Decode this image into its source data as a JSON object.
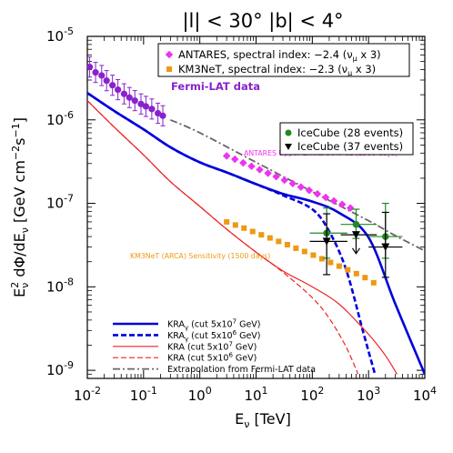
{
  "chart_data": {
    "type": "line",
    "title": "|l| < 30° |b| < 4°",
    "xlabel": "E_ν [TeV]",
    "ylabel": "E_ν² dΦ/dE_ν [GeV cm⁻² s⁻¹]",
    "xscale": "log",
    "yscale": "log",
    "xlim": [
      0.01,
      10000
    ],
    "ylim": [
      8e-10,
      1e-05
    ],
    "x_ticks": [
      {
        "value": 0.01,
        "base": "10",
        "exp": "-2"
      },
      {
        "value": 0.1,
        "base": "10",
        "exp": "-1"
      },
      {
        "value": 1,
        "base": "10",
        "exp": "0"
      },
      {
        "value": 10,
        "base": "10",
        "exp": "1"
      },
      {
        "value": 100,
        "base": "10",
        "exp": "2"
      },
      {
        "value": 1000,
        "base": "10",
        "exp": "3"
      },
      {
        "value": 10000,
        "base": "10",
        "exp": "4"
      }
    ],
    "y_ticks": [
      {
        "value": 1e-09,
        "base": "10",
        "exp": "-9"
      },
      {
        "value": 1e-08,
        "base": "10",
        "exp": "-8"
      },
      {
        "value": 1e-07,
        "base": "10",
        "exp": "-7"
      },
      {
        "value": 1e-06,
        "base": "10",
        "exp": "-6"
      },
      {
        "value": 1e-05,
        "base": "10",
        "exp": "-5"
      }
    ],
    "series": [
      {
        "name": "KRAγ (cut 5x10⁷ GeV)",
        "style": "solid",
        "color": "#0000dd",
        "width": 2.6,
        "x": [
          0.01,
          0.03,
          0.1,
          0.3,
          1,
          3,
          10,
          30,
          100,
          300,
          1000,
          3000,
          10000
        ],
        "y": [
          2.1e-06,
          1.28e-06,
          7.7e-07,
          4.7e-07,
          3.1e-07,
          2.35e-07,
          1.7e-07,
          1.3e-07,
          1.05e-07,
          7.7e-08,
          3.9e-08,
          6.2e-09,
          9e-10
        ]
      },
      {
        "name": "KRAγ (cut 5x10⁶ GeV)",
        "style": "dashed",
        "color": "#0000dd",
        "width": 2.6,
        "x": [
          0.01,
          0.03,
          0.1,
          0.3,
          1,
          3,
          10,
          30,
          100,
          200,
          400,
          800,
          1300
        ],
        "y": [
          2.1e-06,
          1.28e-06,
          7.7e-07,
          4.7e-07,
          3.1e-07,
          2.35e-07,
          1.7e-07,
          1.25e-07,
          8.5e-08,
          4.6e-08,
          1.6e-08,
          2.9e-09,
          9e-10
        ]
      },
      {
        "name": "KRA (cut 5x10⁷ GeV)",
        "style": "solid",
        "color": "#ee2222",
        "width": 1.2,
        "x": [
          0.01,
          0.03,
          0.1,
          0.3,
          1,
          3,
          10,
          30,
          100,
          300,
          1000,
          2000,
          3200
        ],
        "y": [
          1.7e-06,
          8.2e-07,
          3.8e-07,
          1.82e-07,
          9.2e-08,
          4.9e-08,
          2.6e-08,
          1.55e-08,
          1e-08,
          6.2e-09,
          2.7e-09,
          1.5e-09,
          9e-10
        ]
      },
      {
        "name": "KRA (cut 5x10⁶ GeV)",
        "style": "dashed",
        "color": "#ee2222",
        "width": 1.2,
        "x": [
          0.01,
          0.03,
          0.1,
          0.3,
          1,
          3,
          10,
          30,
          100,
          200,
          400,
          650
        ],
        "y": [
          1.7e-06,
          8.2e-07,
          3.8e-07,
          1.82e-07,
          9.2e-08,
          4.9e-08,
          2.6e-08,
          1.5e-08,
          7.4e-09,
          4.2e-09,
          1.9e-09,
          9e-10
        ]
      },
      {
        "name": "Extrapolation from Fermi-LAT data",
        "style": "dashdot",
        "color": "#666666",
        "width": 1.8,
        "x": [
          0.3,
          1,
          10,
          100,
          1000,
          3000,
          10000
        ],
        "y": [
          1e-06,
          7e-07,
          3.1e-07,
          1.38e-07,
          6.2e-08,
          4.1e-08,
          2.7e-08
        ]
      }
    ],
    "fermi_lat": {
      "label": "Fermi-LAT data",
      "color": "#8822cc",
      "x": [
        0.011,
        0.014,
        0.018,
        0.022,
        0.028,
        0.035,
        0.045,
        0.056,
        0.07,
        0.09,
        0.11,
        0.14,
        0.18,
        0.22
      ],
      "y": [
        4.3e-06,
        3.7e-06,
        3.4e-06,
        2.95e-06,
        2.6e-06,
        2.3e-06,
        2.05e-06,
        1.85e-06,
        1.7e-06,
        1.55e-06,
        1.45e-06,
        1.35e-06,
        1.2e-06,
        1.12e-06
      ],
      "yerr_factor": 1.32
    },
    "antares": {
      "legend": "ANTARES, spectral index: −2.4  (ν",
      "legend_sub": "μ",
      "legend_tail": " x 3)",
      "annotation": "ANTARES Upper Limits 90% CL (1500 days)",
      "color": "#ee33ee",
      "x": [
        3,
        4.2,
        5.9,
        8.3,
        11.6,
        16.3,
        22.8,
        32,
        44.8,
        62.8,
        88,
        123,
        173,
        242,
        340,
        476
      ],
      "y": [
        3.7e-07,
        3.38e-07,
        3.06e-07,
        2.78e-07,
        2.53e-07,
        2.3e-07,
        2.09e-07,
        1.9e-07,
        1.73e-07,
        1.57e-07,
        1.43e-07,
        1.3e-07,
        1.18e-07,
        1.07e-07,
        9.7e-08,
        8.8e-08
      ]
    },
    "km3net": {
      "legend": "KM3NeT, spectral index: −2.3  (ν",
      "legend_sub": "μ",
      "legend_tail": " x 3)",
      "annotation": "KM3NeT (ARCA) Sensitivity (1500 days)",
      "color": "#ee9911",
      "x": [
        3,
        4.3,
        6.1,
        8.7,
        12.4,
        17.7,
        25.2,
        36,
        51.2,
        73,
        104,
        148,
        211,
        300,
        427,
        608,
        866,
        1233
      ],
      "y": [
        6e-08,
        5.5e-08,
        5.05e-08,
        4.6e-08,
        4.2e-08,
        3.85e-08,
        3.5e-08,
        3.2e-08,
        2.9e-08,
        2.65e-08,
        2.4e-08,
        2.17e-08,
        1.96e-08,
        1.77e-08,
        1.6e-08,
        1.44e-08,
        1.29e-08,
        1.12e-08
      ]
    },
    "icecube28": {
      "legend": "IceCube (28 events)",
      "color": "#228822",
      "points": [
        {
          "x": 180,
          "y": 4.4e-08,
          "xlo": 90,
          "xhi": 420,
          "ylo": 2.2e-08,
          "yhi": 8.8e-08
        },
        {
          "x": 600,
          "y": 5.6e-08,
          "xlo": 320,
          "xhi": 1400,
          "ylo": 3.8e-08,
          "yhi": 8.5e-08
        },
        {
          "x": 2000,
          "y": 4e-08,
          "xlo": 1000,
          "xhi": 4000,
          "ylo": 2.2e-08,
          "yhi": 1e-07
        }
      ]
    },
    "icecube37": {
      "legend": "IceCube (37 events)",
      "color": "#000000",
      "points": [
        {
          "x": 180,
          "y": 3.5e-08,
          "xlo": 90,
          "xhi": 420,
          "ylo": 1.4e-08,
          "yhi": 7.5e-08
        },
        {
          "x": 600,
          "y": 4.2e-08,
          "xlo": 320,
          "xhi": 1400,
          "uplim": true,
          "ylo": 2.5e-08
        },
        {
          "x": 2000,
          "y": 3e-08,
          "xlo": 1000,
          "xhi": 4000,
          "ylo": 1.3e-08,
          "yhi": 7.8e-08
        }
      ]
    },
    "legend_lines": [
      {
        "label": "KRA",
        "sub": "γ",
        "tail": " (cut 5x10",
        "exp": "7",
        "end": " GeV)",
        "color": "#0000dd",
        "dash": "",
        "width": 2.6
      },
      {
        "label": "KRA",
        "sub": "γ",
        "tail": " (cut 5x10",
        "exp": "6",
        "end": " GeV)",
        "color": "#0000dd",
        "dash": "6,3",
        "width": 2.6
      },
      {
        "label": "KRA",
        "sub": "",
        "tail": " (cut 5x10",
        "exp": "7",
        "end": " GeV)",
        "color": "#ee2222",
        "dash": "",
        "width": 1.2
      },
      {
        "label": "KRA",
        "sub": "",
        "tail": " (cut 5x10",
        "exp": "6",
        "end": " GeV)",
        "color": "#ee2222",
        "dash": "6,3",
        "width": 1.2
      },
      {
        "label": "Extrapolation from Fermi-LAT data",
        "sub": "",
        "tail": "",
        "exp": "",
        "end": "",
        "color": "#666666",
        "dash": "8,3,2,3",
        "width": 1.8
      }
    ],
    "grid": false,
    "legend_position": "top-right and bottom-left"
  }
}
